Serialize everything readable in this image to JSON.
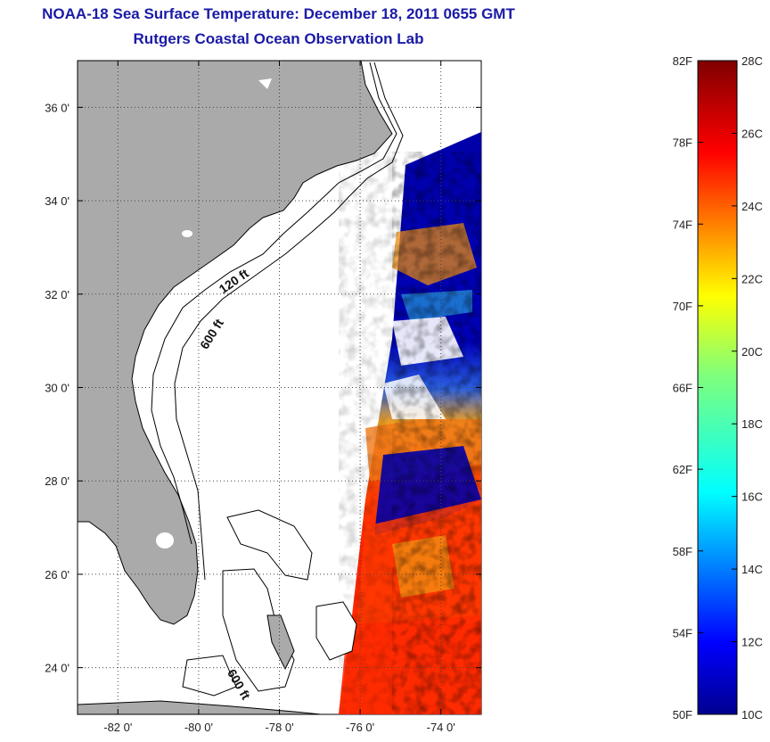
{
  "title": {
    "line1": "NOAA-18 Sea Surface Temperature:  December 18, 2011 0655 GMT",
    "line2": "Rutgers Coastal Ocean Observation Lab"
  },
  "map": {
    "lon_range": [
      -83,
      -73
    ],
    "lat_range": [
      23,
      37
    ],
    "x_ticks": [
      {
        "value": -82,
        "label": "-82 0'"
      },
      {
        "value": -80,
        "label": "-80 0'"
      },
      {
        "value": -78,
        "label": "-78 0'"
      },
      {
        "value": -76,
        "label": "-76 0'"
      },
      {
        "value": -74,
        "label": "-74 0'"
      }
    ],
    "y_ticks": [
      {
        "value": 24,
        "label": "24 0'"
      },
      {
        "value": 26,
        "label": "26 0'"
      },
      {
        "value": 28,
        "label": "28 0'"
      },
      {
        "value": 30,
        "label": "30 0'"
      },
      {
        "value": 32,
        "label": "32 0'"
      },
      {
        "value": 34,
        "label": "34 0'"
      },
      {
        "value": 36,
        "label": "36 0'"
      }
    ],
    "contour_labels": [
      {
        "text": "120 ft",
        "lon": -79.4,
        "lat": 32.0
      },
      {
        "text": "600 ft",
        "lon": -79.8,
        "lat": 30.8
      },
      {
        "text": "600 ft",
        "lon": -79.3,
        "lat": 23.9
      }
    ],
    "colors": {
      "land": "#aaaaaa",
      "ocean_bg": "#ffffff",
      "coastline": "#000000",
      "grid": "#444444"
    }
  },
  "colorbar": {
    "fahrenheit_labels": [
      "82F",
      "78F",
      "74F",
      "70F",
      "66F",
      "62F",
      "58F",
      "54F",
      "50F"
    ],
    "celsius_labels": [
      "28C",
      "26C",
      "24C",
      "22C",
      "20C",
      "18C",
      "16C",
      "14C",
      "12C",
      "10C"
    ],
    "range_celsius": [
      10,
      28
    ]
  }
}
